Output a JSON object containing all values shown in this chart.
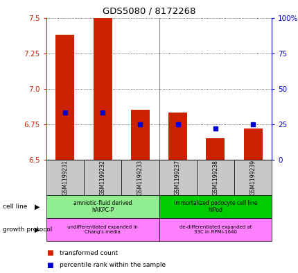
{
  "title": "GDS5080 / 8172268",
  "samples": [
    "GSM1199231",
    "GSM1199232",
    "GSM1199233",
    "GSM1199237",
    "GSM1199238",
    "GSM1199239"
  ],
  "red_values": [
    7.38,
    7.5,
    6.85,
    6.83,
    6.65,
    6.72
  ],
  "blue_values": [
    6.83,
    6.83,
    6.75,
    6.75,
    6.72,
    6.75
  ],
  "ylim": [
    6.5,
    7.5
  ],
  "yticks_left": [
    6.5,
    6.75,
    7.0,
    7.25,
    7.5
  ],
  "ytick_labels_right": [
    "0",
    "25",
    "50",
    "75",
    "100%"
  ],
  "cell_line_groups": [
    {
      "samples": [
        0,
        1,
        2
      ],
      "label": "amniotic-fluid derived\nhAKPC-P",
      "color": "#90EE90"
    },
    {
      "samples": [
        3,
        4,
        5
      ],
      "label": "immortalized podocyte cell line\nhIPod",
      "color": "#00CC00"
    }
  ],
  "growth_protocol_groups": [
    {
      "samples": [
        0,
        1,
        2
      ],
      "label": "undifferentiated expanded in\nChang's media",
      "color": "#FF80FF"
    },
    {
      "samples": [
        3,
        4,
        5
      ],
      "label": "de-differentiated expanded at\n33C in RPMI-1640",
      "color": "#FF80FF"
    }
  ],
  "bar_color": "#CC2200",
  "dot_color": "#0000CC",
  "tick_color_left": "#CC2200",
  "tick_color_right": "#0000CC",
  "legend_items": [
    {
      "color": "#CC2200",
      "label": "transformed count"
    },
    {
      "color": "#0000CC",
      "label": "percentile rank within the sample"
    }
  ]
}
